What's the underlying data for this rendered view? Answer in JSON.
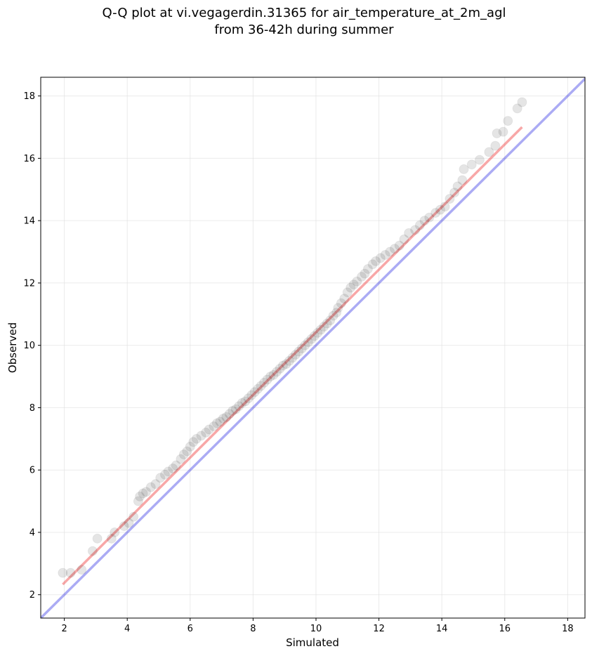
{
  "chart_data": {
    "type": "scatter",
    "title_line1": "Q-Q plot at vi.vegagerdin.31365 for air_temperature_at_2m_agl",
    "title_line2": "from 36-42h during summer",
    "xlabel": "Simulated",
    "ylabel": "Observed",
    "xlim": [
      1.25,
      18.55
    ],
    "ylim": [
      1.25,
      18.6
    ],
    "xticks": [
      "2",
      "4",
      "6",
      "8",
      "10",
      "12",
      "14",
      "16",
      "18"
    ],
    "yticks": [
      "2",
      "4",
      "6",
      "8",
      "10",
      "12",
      "14",
      "16",
      "18"
    ],
    "grid": true,
    "colors": {
      "points": "#000000",
      "identity_line": "#0000dd",
      "fit_line": "#ee2222",
      "grid": "#dddddd"
    },
    "identity_line": {
      "from": [
        1.25,
        1.25
      ],
      "to": [
        18.6,
        18.6
      ]
    },
    "fit_line": {
      "from": [
        1.95,
        2.33
      ],
      "to": [
        16.55,
        17.0
      ]
    },
    "points": [
      [
        1.95,
        2.7
      ],
      [
        2.2,
        2.7
      ],
      [
        2.55,
        2.8
      ],
      [
        2.9,
        3.4
      ],
      [
        3.05,
        3.8
      ],
      [
        3.5,
        3.8
      ],
      [
        3.6,
        4.0
      ],
      [
        3.9,
        4.2
      ],
      [
        4.05,
        4.3
      ],
      [
        4.2,
        4.5
      ],
      [
        4.35,
        5.0
      ],
      [
        4.4,
        5.15
      ],
      [
        4.5,
        5.25
      ],
      [
        4.6,
        5.3
      ],
      [
        4.75,
        5.45
      ],
      [
        4.9,
        5.55
      ],
      [
        5.05,
        5.75
      ],
      [
        5.2,
        5.85
      ],
      [
        5.3,
        5.95
      ],
      [
        5.45,
        6.05
      ],
      [
        5.55,
        6.15
      ],
      [
        5.7,
        6.35
      ],
      [
        5.8,
        6.5
      ],
      [
        5.9,
        6.6
      ],
      [
        6.0,
        6.75
      ],
      [
        6.1,
        6.9
      ],
      [
        6.2,
        7.0
      ],
      [
        6.35,
        7.1
      ],
      [
        6.5,
        7.2
      ],
      [
        6.6,
        7.3
      ],
      [
        6.75,
        7.4
      ],
      [
        6.85,
        7.5
      ],
      [
        6.95,
        7.55
      ],
      [
        7.05,
        7.65
      ],
      [
        7.15,
        7.7
      ],
      [
        7.25,
        7.8
      ],
      [
        7.35,
        7.9
      ],
      [
        7.45,
        7.95
      ],
      [
        7.55,
        8.05
      ],
      [
        7.65,
        8.15
      ],
      [
        7.75,
        8.2
      ],
      [
        7.85,
        8.3
      ],
      [
        7.95,
        8.4
      ],
      [
        8.05,
        8.5
      ],
      [
        8.15,
        8.6
      ],
      [
        8.25,
        8.7
      ],
      [
        8.35,
        8.8
      ],
      [
        8.45,
        8.9
      ],
      [
        8.55,
        9.0
      ],
      [
        8.65,
        9.05
      ],
      [
        8.75,
        9.15
      ],
      [
        8.85,
        9.25
      ],
      [
        8.95,
        9.35
      ],
      [
        9.05,
        9.4
      ],
      [
        9.15,
        9.5
      ],
      [
        9.25,
        9.6
      ],
      [
        9.35,
        9.7
      ],
      [
        9.45,
        9.8
      ],
      [
        9.55,
        9.9
      ],
      [
        9.65,
        10.0
      ],
      [
        9.75,
        10.1
      ],
      [
        9.85,
        10.2
      ],
      [
        9.95,
        10.3
      ],
      [
        10.05,
        10.4
      ],
      [
        10.15,
        10.5
      ],
      [
        10.25,
        10.6
      ],
      [
        10.35,
        10.7
      ],
      [
        10.45,
        10.8
      ],
      [
        10.55,
        10.95
      ],
      [
        10.65,
        11.05
      ],
      [
        10.7,
        11.2
      ],
      [
        10.8,
        11.35
      ],
      [
        10.9,
        11.5
      ],
      [
        11.0,
        11.7
      ],
      [
        11.1,
        11.85
      ],
      [
        11.2,
        11.95
      ],
      [
        11.3,
        12.05
      ],
      [
        11.45,
        12.2
      ],
      [
        11.55,
        12.3
      ],
      [
        11.65,
        12.45
      ],
      [
        11.8,
        12.6
      ],
      [
        11.9,
        12.7
      ],
      [
        12.05,
        12.8
      ],
      [
        12.2,
        12.9
      ],
      [
        12.35,
        13.0
      ],
      [
        12.5,
        13.1
      ],
      [
        12.65,
        13.2
      ],
      [
        12.8,
        13.4
      ],
      [
        12.95,
        13.6
      ],
      [
        13.15,
        13.7
      ],
      [
        13.3,
        13.85
      ],
      [
        13.45,
        14.0
      ],
      [
        13.6,
        14.1
      ],
      [
        13.8,
        14.25
      ],
      [
        13.95,
        14.35
      ],
      [
        14.1,
        14.45
      ],
      [
        14.25,
        14.7
      ],
      [
        14.4,
        14.9
      ],
      [
        14.5,
        15.1
      ],
      [
        14.65,
        15.3
      ],
      [
        14.7,
        15.65
      ],
      [
        14.95,
        15.8
      ],
      [
        15.2,
        15.95
      ],
      [
        15.5,
        16.2
      ],
      [
        15.7,
        16.4
      ],
      [
        15.75,
        16.8
      ],
      [
        15.95,
        16.85
      ],
      [
        16.1,
        17.2
      ],
      [
        16.4,
        17.6
      ],
      [
        16.55,
        17.8
      ]
    ]
  }
}
